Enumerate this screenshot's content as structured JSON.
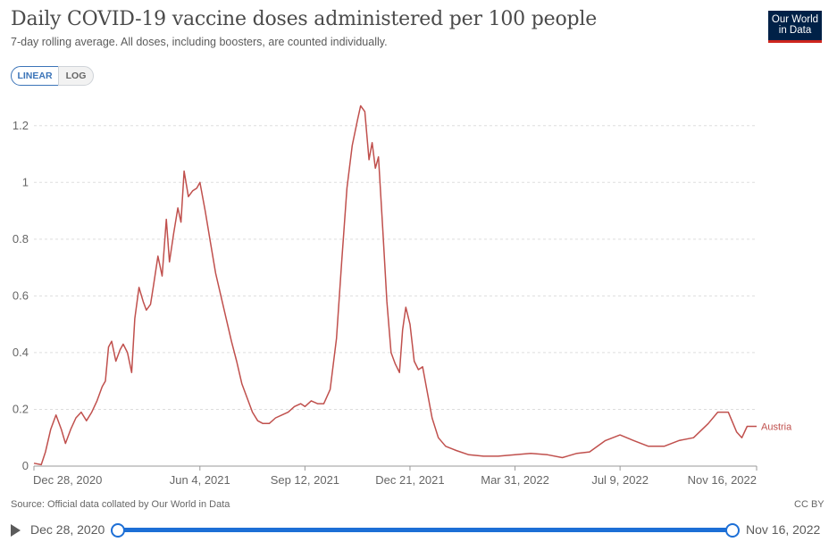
{
  "header": {
    "title": "Daily COVID-19 vaccine doses administered per 100 people",
    "subtitle": "7-day rolling average. All doses, including boosters, are counted individually.",
    "logo_line1": "Our World",
    "logo_line2": "in Data"
  },
  "controls": {
    "linear_label": "LINEAR",
    "log_label": "LOG",
    "selected": "LINEAR"
  },
  "footer": {
    "source": "Source: Official data collated by Our World in Data",
    "license": "CC BY"
  },
  "timeline": {
    "start_label": "Dec 28, 2020",
    "end_label": "Nov 16, 2022"
  },
  "colors": {
    "series": "#c0504d",
    "accent": "#1d6fd6",
    "grid": "#dddddd",
    "logo_bg": "#002147",
    "logo_bar": "#ce261e"
  },
  "chart_data": {
    "type": "line",
    "title": "Daily COVID-19 vaccine doses administered per 100 people",
    "xlabel": "",
    "ylabel": "",
    "x_range": [
      "2020-12-28",
      "2022-11-16"
    ],
    "ylim": [
      0,
      1.3
    ],
    "yticks": [
      0,
      0.2,
      0.4,
      0.6,
      0.8,
      1,
      1.2
    ],
    "ytick_labels": [
      "0",
      "0.2",
      "0.4",
      "0.6",
      "0.8",
      "1",
      "1.2"
    ],
    "xticks": [
      "2020-12-28",
      "2021-06-04",
      "2021-09-12",
      "2021-12-21",
      "2022-03-31",
      "2022-07-09",
      "2022-11-16"
    ],
    "xtick_labels": [
      "Dec 28, 2020",
      "Jun 4, 2021",
      "Sep 12, 2021",
      "Dec 21, 2021",
      "Mar 31, 2022",
      "Jul 9, 2022",
      "Nov 16, 2022"
    ],
    "grid": "horizontal dashed",
    "series": [
      {
        "name": "Austria",
        "points": [
          [
            "2020-12-28",
            0.01
          ],
          [
            "2021-01-04",
            0.005
          ],
          [
            "2021-01-08",
            0.05
          ],
          [
            "2021-01-13",
            0.13
          ],
          [
            "2021-01-18",
            0.18
          ],
          [
            "2021-01-23",
            0.13
          ],
          [
            "2021-01-27",
            0.08
          ],
          [
            "2021-02-01",
            0.13
          ],
          [
            "2021-02-06",
            0.17
          ],
          [
            "2021-02-11",
            0.19
          ],
          [
            "2021-02-16",
            0.16
          ],
          [
            "2021-02-21",
            0.19
          ],
          [
            "2021-02-26",
            0.23
          ],
          [
            "2021-03-03",
            0.28
          ],
          [
            "2021-03-06",
            0.3
          ],
          [
            "2021-03-09",
            0.42
          ],
          [
            "2021-03-12",
            0.44
          ],
          [
            "2021-03-16",
            0.37
          ],
          [
            "2021-03-20",
            0.41
          ],
          [
            "2021-03-23",
            0.43
          ],
          [
            "2021-03-27",
            0.4
          ],
          [
            "2021-03-31",
            0.33
          ],
          [
            "2021-04-03",
            0.52
          ],
          [
            "2021-04-07",
            0.63
          ],
          [
            "2021-04-11",
            0.58
          ],
          [
            "2021-04-14",
            0.55
          ],
          [
            "2021-04-18",
            0.57
          ],
          [
            "2021-04-21",
            0.64
          ],
          [
            "2021-04-25",
            0.74
          ],
          [
            "2021-04-29",
            0.67
          ],
          [
            "2021-05-03",
            0.87
          ],
          [
            "2021-05-06",
            0.72
          ],
          [
            "2021-05-10",
            0.82
          ],
          [
            "2021-05-14",
            0.91
          ],
          [
            "2021-05-17",
            0.86
          ],
          [
            "2021-05-20",
            1.04
          ],
          [
            "2021-05-24",
            0.95
          ],
          [
            "2021-05-28",
            0.97
          ],
          [
            "2021-06-01",
            0.98
          ],
          [
            "2021-06-04",
            1.0
          ],
          [
            "2021-06-09",
            0.9
          ],
          [
            "2021-06-14",
            0.79
          ],
          [
            "2021-06-19",
            0.68
          ],
          [
            "2021-06-24",
            0.6
          ],
          [
            "2021-06-29",
            0.52
          ],
          [
            "2021-07-04",
            0.44
          ],
          [
            "2021-07-09",
            0.37
          ],
          [
            "2021-07-14",
            0.29
          ],
          [
            "2021-07-19",
            0.24
          ],
          [
            "2021-07-24",
            0.19
          ],
          [
            "2021-07-29",
            0.16
          ],
          [
            "2021-08-03",
            0.15
          ],
          [
            "2021-08-09",
            0.15
          ],
          [
            "2021-08-15",
            0.17
          ],
          [
            "2021-08-21",
            0.18
          ],
          [
            "2021-08-27",
            0.19
          ],
          [
            "2021-09-02",
            0.21
          ],
          [
            "2021-09-08",
            0.22
          ],
          [
            "2021-09-12",
            0.21
          ],
          [
            "2021-09-18",
            0.23
          ],
          [
            "2021-09-24",
            0.22
          ],
          [
            "2021-09-30",
            0.22
          ],
          [
            "2021-10-06",
            0.27
          ],
          [
            "2021-10-12",
            0.45
          ],
          [
            "2021-10-17",
            0.72
          ],
          [
            "2021-10-22",
            0.98
          ],
          [
            "2021-10-27",
            1.13
          ],
          [
            "2021-11-01",
            1.22
          ],
          [
            "2021-11-04",
            1.27
          ],
          [
            "2021-11-08",
            1.25
          ],
          [
            "2021-11-12",
            1.08
          ],
          [
            "2021-11-15",
            1.14
          ],
          [
            "2021-11-18",
            1.05
          ],
          [
            "2021-11-21",
            1.09
          ],
          [
            "2021-11-25",
            0.84
          ],
          [
            "2021-11-29",
            0.58
          ],
          [
            "2021-12-03",
            0.4
          ],
          [
            "2021-12-07",
            0.36
          ],
          [
            "2021-12-11",
            0.33
          ],
          [
            "2021-12-14",
            0.48
          ],
          [
            "2021-12-17",
            0.56
          ],
          [
            "2021-12-21",
            0.5
          ],
          [
            "2021-12-25",
            0.37
          ],
          [
            "2021-12-29",
            0.34
          ],
          [
            "2022-01-02",
            0.35
          ],
          [
            "2022-01-06",
            0.27
          ],
          [
            "2022-01-11",
            0.17
          ],
          [
            "2022-01-17",
            0.1
          ],
          [
            "2022-01-24",
            0.07
          ],
          [
            "2022-02-03",
            0.055
          ],
          [
            "2022-02-15",
            0.04
          ],
          [
            "2022-03-01",
            0.035
          ],
          [
            "2022-03-15",
            0.035
          ],
          [
            "2022-03-31",
            0.04
          ],
          [
            "2022-04-15",
            0.045
          ],
          [
            "2022-05-01",
            0.04
          ],
          [
            "2022-05-15",
            0.03
          ],
          [
            "2022-05-29",
            0.045
          ],
          [
            "2022-06-10",
            0.05
          ],
          [
            "2022-06-25",
            0.09
          ],
          [
            "2022-07-09",
            0.11
          ],
          [
            "2022-07-22",
            0.09
          ],
          [
            "2022-08-05",
            0.07
          ],
          [
            "2022-08-20",
            0.07
          ],
          [
            "2022-09-03",
            0.09
          ],
          [
            "2022-09-17",
            0.1
          ],
          [
            "2022-10-01",
            0.15
          ],
          [
            "2022-10-10",
            0.19
          ],
          [
            "2022-10-20",
            0.19
          ],
          [
            "2022-10-28",
            0.12
          ],
          [
            "2022-11-02",
            0.1
          ],
          [
            "2022-11-07",
            0.14
          ],
          [
            "2022-11-16",
            0.14
          ]
        ]
      }
    ]
  }
}
